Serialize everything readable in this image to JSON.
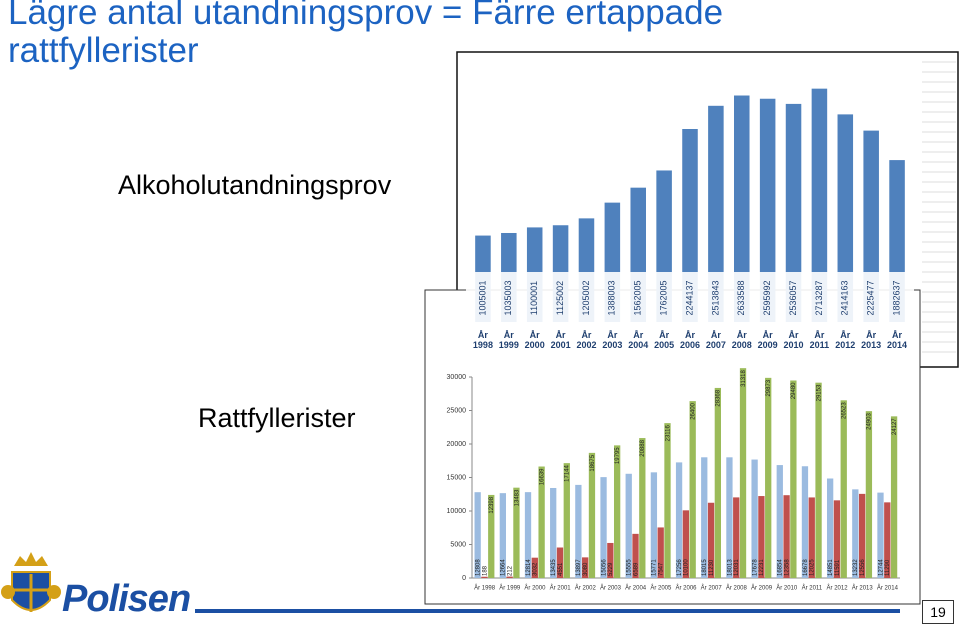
{
  "slide": {
    "title": "Lägre antal utandningsprov  =  Färre ertappade rattfyllerister",
    "label_breath_tests": "Alkoholutandningsprov",
    "label_drunk_drivers": "Rattfyllerister",
    "logo_text": "Polisen",
    "page_number": 19
  },
  "chart_data": [
    {
      "type": "bar",
      "categories": [
        "År 1998",
        "År 1999",
        "År 2000",
        "År 2001",
        "År 2002",
        "År 2003",
        "År 2004",
        "År 2005",
        "År 2006",
        "År 2007",
        "År 2008",
        "År 2009",
        "År 2010",
        "År 2011",
        "År 2012",
        "År 2013",
        "År 2014"
      ],
      "values": [
        1005001,
        1035003,
        1100001,
        1125002,
        1205002,
        1388003,
        1562005,
        1762005,
        2244137,
        2513843,
        2633588,
        2595992,
        2536057,
        2713287,
        2414163,
        2225477,
        1882637
      ],
      "color": "#4f81bd",
      "ylim": [
        0,
        3000000
      ]
    },
    {
      "type": "grouped_bar",
      "categories": [
        "År 1998",
        "År 1999",
        "År 2000",
        "År 2001",
        "År 2002",
        "År 2003",
        "År 2004",
        "År 2005",
        "År 2006",
        "År 2007",
        "År 2008",
        "År 2009",
        "År 2010",
        "År 2011",
        "År 2012",
        "År 2013",
        "År 2014"
      ],
      "series": [
        {
          "color": "#9bbbe0",
          "values": [
            12808,
            12664,
            12814,
            13435,
            13897,
            15056,
            15555,
            15771,
            17256,
            18015,
            18013,
            17678,
            16854,
            16678,
            14851,
            13232,
            12744
          ]
        },
        {
          "color": "#c0504d",
          "values": [
            188,
            212,
            3032,
            4551,
            3080,
            5229,
            6589,
            7547,
            10100,
            11230,
            12031,
            12231,
            12358,
            12025,
            11591,
            12556,
            11290
          ]
        },
        {
          "color": "#9bbb59",
          "values": [
            12398,
            13483,
            16639,
            17144,
            18675,
            19795,
            20888,
            23116,
            26400,
            28368,
            31318,
            29873,
            29480,
            29153,
            26523,
            24903,
            24127
          ]
        }
      ],
      "ylim": [
        0,
        30000
      ],
      "yticks": [
        0,
        5000,
        10000,
        15000,
        20000,
        25000,
        30000
      ]
    }
  ]
}
